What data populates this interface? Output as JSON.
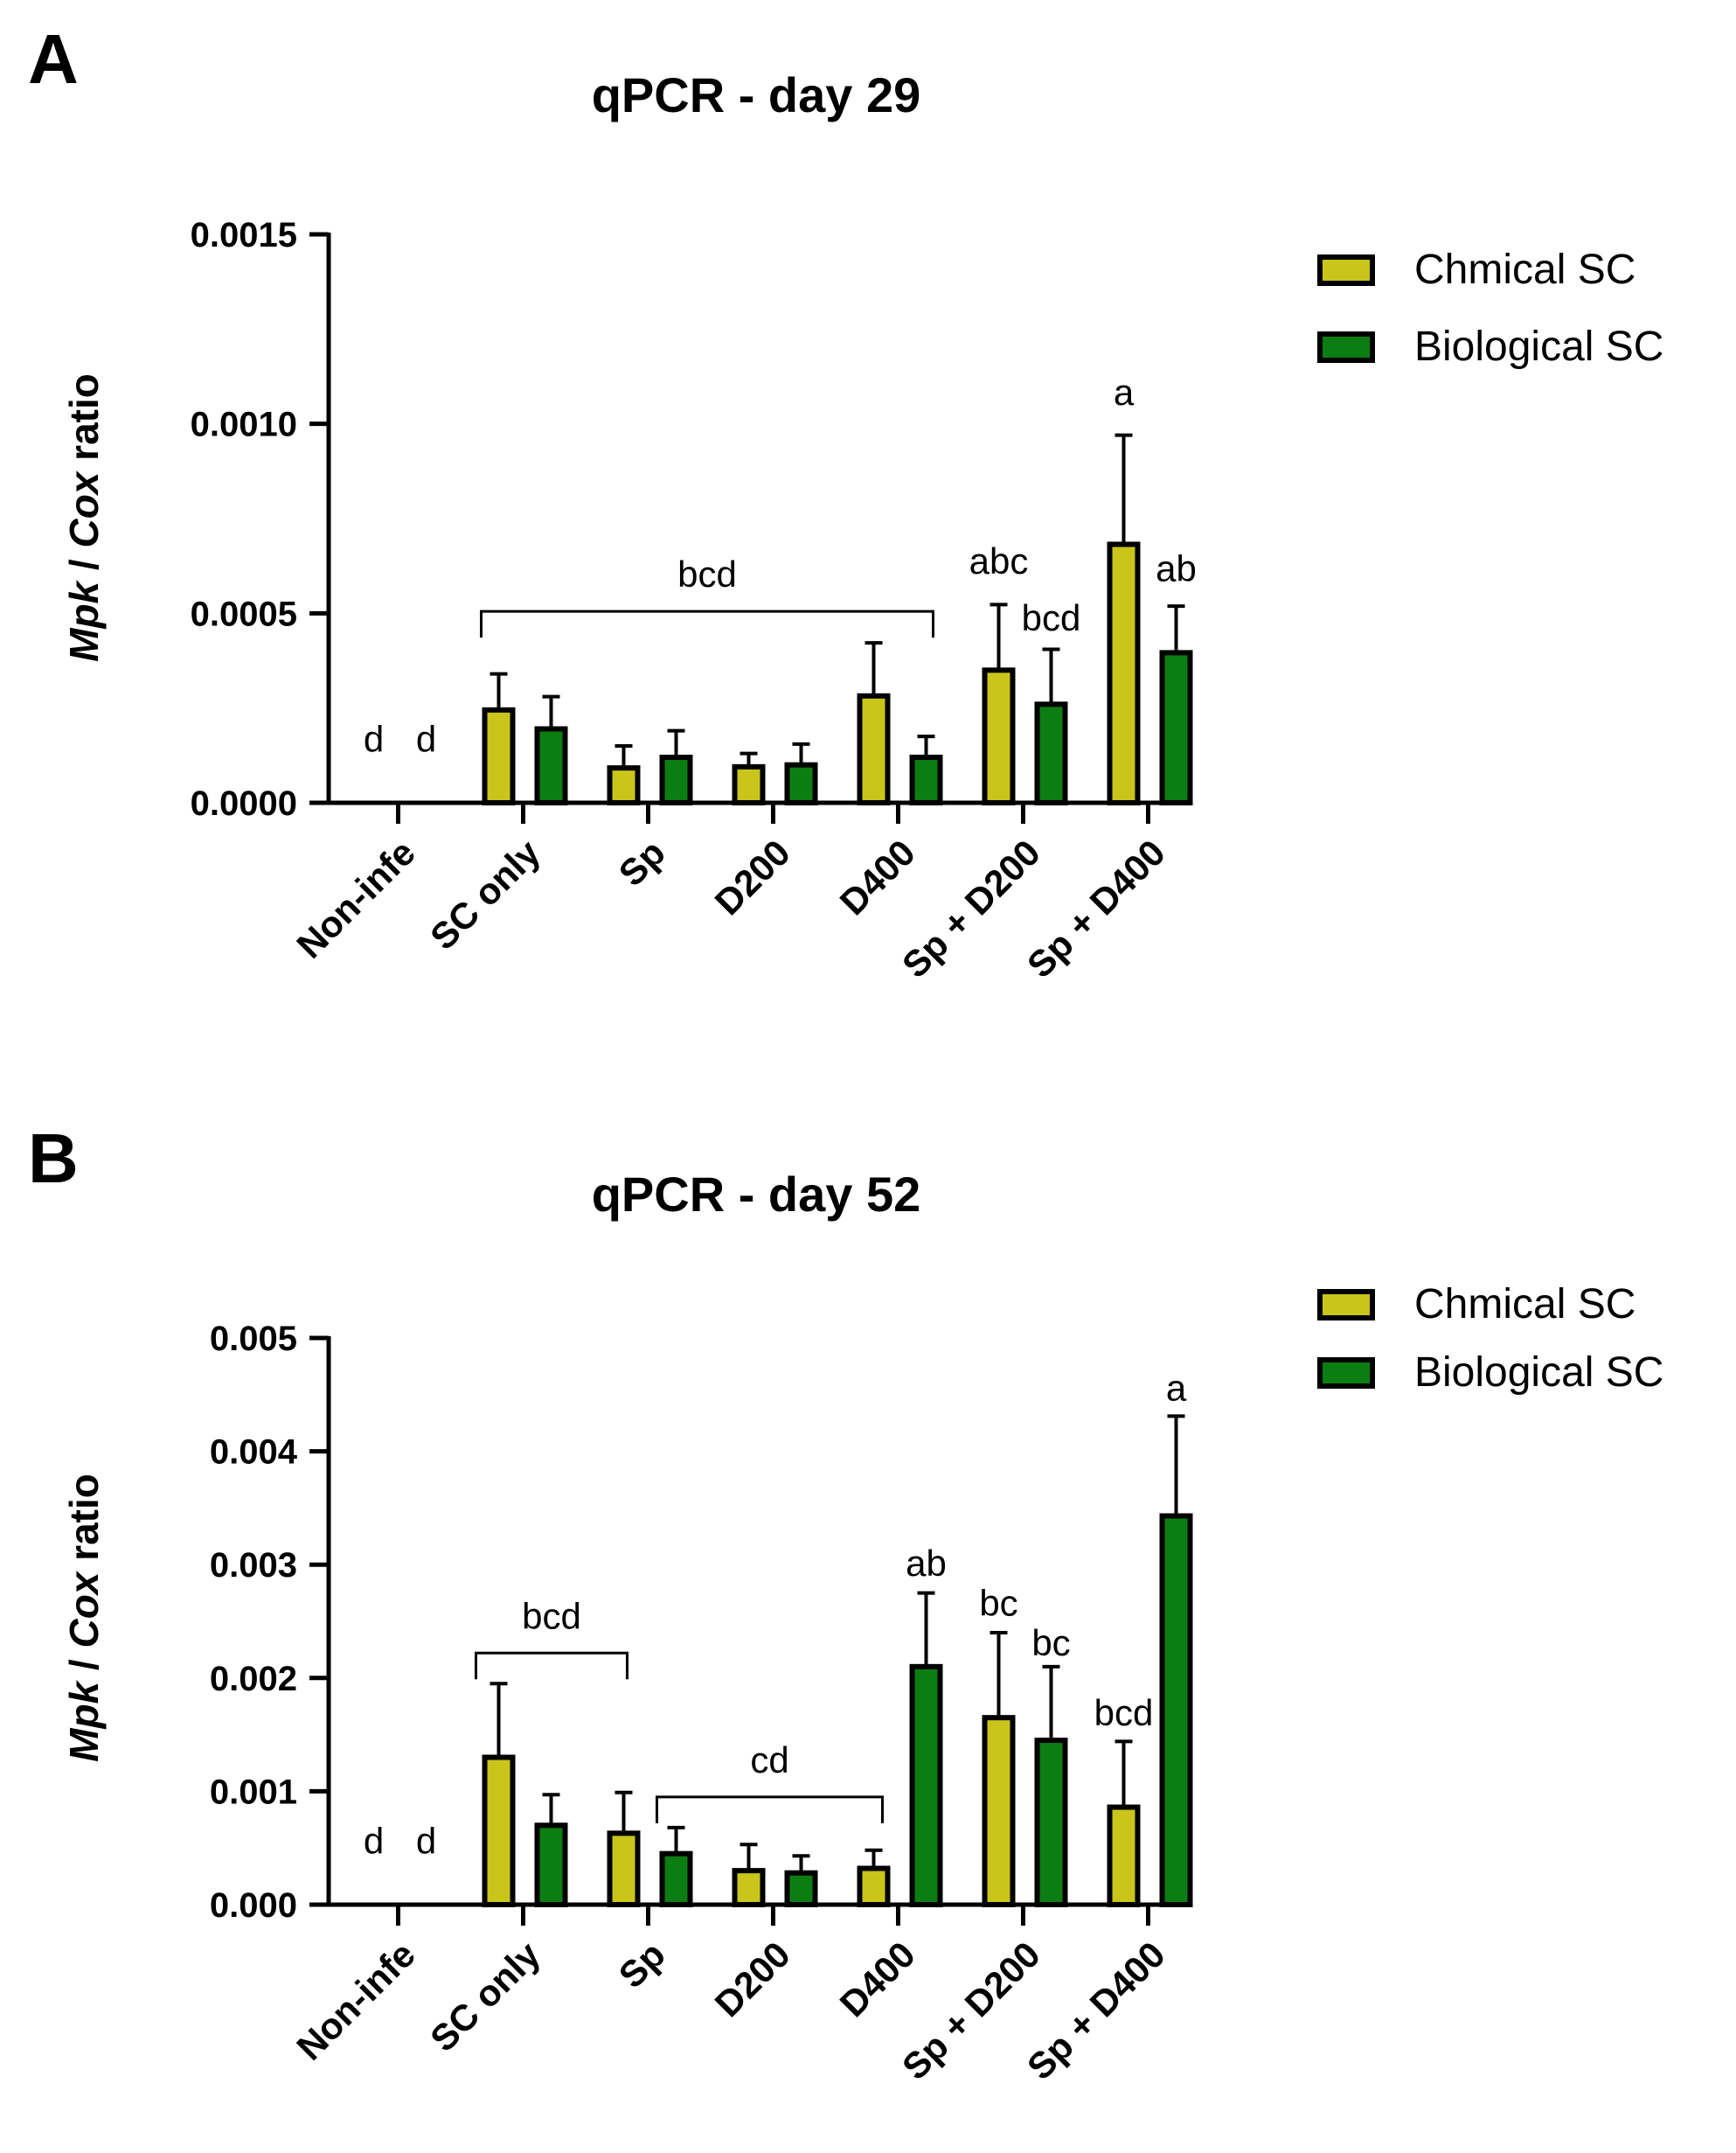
{
  "colors": {
    "chemical": "#c9c51a",
    "biological": "#0c7d13",
    "axis": "#000000"
  },
  "legend": [
    {
      "name": "Chmical SC",
      "color": "#c9c51a"
    },
    {
      "name": "Biological SC",
      "color": "#0c7d13"
    }
  ],
  "chart_data": [
    {
      "panel_label": "A",
      "type": "bar",
      "title": "qPCR - day 29",
      "ylabel_parts": [
        {
          "text": "Mpk",
          "italic": true
        },
        {
          "text": " / ",
          "italic": false
        },
        {
          "text": "Cox",
          "italic": true
        },
        {
          "text": " ratio",
          "italic": false
        }
      ],
      "xlabel": "",
      "categories": [
        "Non-infe",
        "SC only",
        "Sp",
        "D200",
        "D400",
        "Sp + D200",
        "Sp + D400"
      ],
      "ylim": [
        0,
        0.0015
      ],
      "ytick_values": [
        0,
        0.0005,
        0.001,
        0.0015
      ],
      "ytick_labels": [
        "0.0000",
        "0.0005",
        "0.0010",
        "0.0015"
      ],
      "legend_position": "top-right",
      "series": [
        {
          "name": "Chmical SC",
          "values": [
            0,
            0.000245,
            9.2e-05,
            9.5e-05,
            0.000282,
            0.00035,
            0.000682
          ],
          "errors": [
            0,
            9.5e-05,
            5.8e-05,
            3.5e-05,
            0.00014,
            0.000173,
            0.000288
          ]
        },
        {
          "name": "Biological SC",
          "values": [
            0,
            0.000195,
            0.00012,
            0.0001,
            0.00012,
            0.00026,
            0.000396
          ],
          "errors": [
            0,
            8.5e-05,
            7e-05,
            5.5e-05,
            5.5e-05,
            0.000145,
            0.000123
          ]
        }
      ],
      "annotations": [
        {
          "text": "d",
          "category": 0,
          "series": 0,
          "value": 0.000135
        },
        {
          "text": "d",
          "category": 0,
          "series": 1,
          "value": 0.000135
        },
        {
          "text": "bcd",
          "bracket_from": 1,
          "bracket_to": 4,
          "value": 0.000505
        },
        {
          "text": "abc",
          "category": 5,
          "series": 0,
          "value": 0.000605
        },
        {
          "text": "bcd",
          "category": 5,
          "series": 1,
          "value": 0.000455
        },
        {
          "text": "a",
          "category": 6,
          "series": 0,
          "value": 0.00105
        },
        {
          "text": "ab",
          "category": 6,
          "series": 1,
          "value": 0.000585
        }
      ]
    },
    {
      "panel_label": "B",
      "type": "bar",
      "title": "qPCR - day 52",
      "ylabel_parts": [
        {
          "text": "Mpk",
          "italic": true
        },
        {
          "text": " / ",
          "italic": false
        },
        {
          "text": "Cox",
          "italic": true
        },
        {
          "text": " ratio",
          "italic": false
        }
      ],
      "xlabel": "",
      "categories": [
        "Non-infe",
        "SC only",
        "Sp",
        "D200",
        "D400",
        "Sp + D200",
        "Sp + D400"
      ],
      "ylim": [
        0,
        0.005
      ],
      "ytick_values": [
        0,
        0.001,
        0.002,
        0.003,
        0.004,
        0.005
      ],
      "ytick_labels": [
        "0.000",
        "0.001",
        "0.002",
        "0.003",
        "0.004",
        "0.005"
      ],
      "legend_position": "top-right",
      "series": [
        {
          "name": "Chmical SC",
          "values": [
            0,
            0.0013,
            0.00063,
            0.0003,
            0.00032,
            0.00165,
            0.00086
          ],
          "errors": [
            0,
            0.00065,
            0.00036,
            0.00023,
            0.00016,
            0.00075,
            0.00058
          ]
        },
        {
          "name": "Biological SC",
          "values": [
            0,
            0.0007,
            0.00045,
            0.00028,
            0.0021,
            0.00145,
            0.00343
          ],
          "errors": [
            0,
            0.00027,
            0.00023,
            0.00015,
            0.00065,
            0.00065,
            0.00088
          ]
        }
      ],
      "annotations": [
        {
          "text": "d",
          "category": 0,
          "series": 0,
          "value": 0.00045
        },
        {
          "text": "d",
          "category": 0,
          "series": 1,
          "value": 0.00045
        },
        {
          "text": "bcd",
          "bracket_from": 1,
          "bracket_to": 2,
          "bracket_span": "left",
          "value": 0.00222
        },
        {
          "text": "cd",
          "bracket_from": 2,
          "bracket_to": 4,
          "bracket_span": "inner",
          "value": 0.00095
        },
        {
          "text": "ab",
          "category": 4,
          "series": 1,
          "value": 0.0029
        },
        {
          "text": "bc",
          "category": 5,
          "series": 0,
          "value": 0.00255
        },
        {
          "text": "bc",
          "category": 5,
          "series": 1,
          "value": 0.0022
        },
        {
          "text": "bcd",
          "category": 6,
          "series": 0,
          "value": 0.00158
        },
        {
          "text": "a",
          "category": 6,
          "series": 1,
          "value": 0.00445
        }
      ]
    }
  ]
}
